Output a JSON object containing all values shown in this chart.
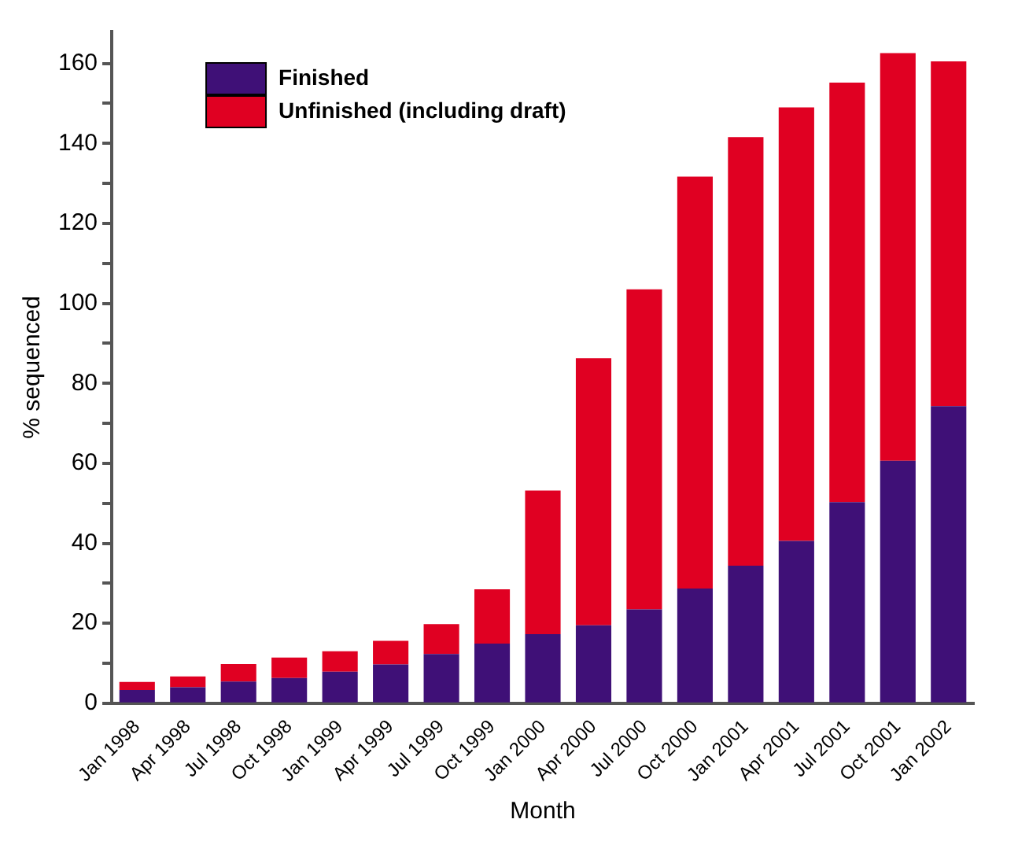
{
  "chart_data": {
    "type": "bar",
    "stacked": true,
    "xlabel": "Month",
    "ylabel": "% sequenced",
    "categories": [
      "Jan 1998",
      "Apr 1998",
      "Jul 1998",
      "Oct 1998",
      "Jan 1999",
      "Apr 1999",
      "Jul 1999",
      "Oct 1999",
      "Jan 2000",
      "Apr 2000",
      "Jul 2000",
      "Oct 2000",
      "Jan 2001",
      "Apr 2001",
      "Jul 2001",
      "Oct 2001",
      "Jan 2002"
    ],
    "series": [
      {
        "name": "Finished",
        "color": "#3f1077",
        "values": [
          3.3,
          4.0,
          5.4,
          6.3,
          7.9,
          9.7,
          12.3,
          14.9,
          17.3,
          19.5,
          23.5,
          28.7,
          34.4,
          40.6,
          50.3,
          60.6,
          74.3
        ]
      },
      {
        "name": "Unfinished (including draft)",
        "color": "#e00022",
        "values": [
          2.0,
          2.7,
          4.4,
          5.1,
          5.1,
          5.9,
          7.5,
          13.6,
          35.9,
          66.8,
          80.0,
          103.0,
          107.2,
          108.4,
          104.9,
          102.0,
          86.2
        ]
      }
    ],
    "ylim": [
      0,
      168
    ],
    "yticks": [
      0,
      {
        "value": 10,
        "label": null
      },
      20,
      {
        "value": 30,
        "label": null
      },
      40,
      {
        "value": 50,
        "label": null
      },
      60,
      {
        "value": 70,
        "label": null
      },
      80,
      {
        "value": 90,
        "label": null
      },
      100,
      {
        "value": 110,
        "label": null
      },
      120,
      {
        "value": 130,
        "label": null
      },
      140,
      {
        "value": 150,
        "label": null
      },
      160
    ],
    "grid": false,
    "legend": "top left"
  }
}
